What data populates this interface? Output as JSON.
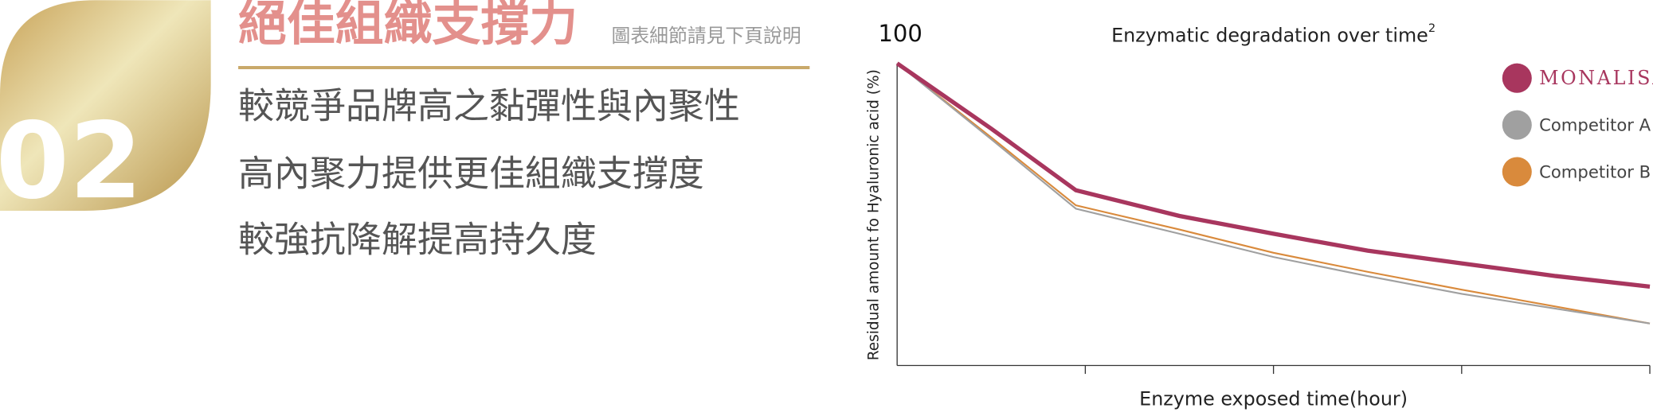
{
  "header": {
    "number": "02",
    "title": "絕佳組織支撐力",
    "note": "圖表細節請見下頁說明"
  },
  "lines": [
    "較競爭品牌高之黏彈性與內聚性",
    "高內聚力提供更佳組織支撐度",
    "較強抗降解提高持久度"
  ],
  "chart_data": {
    "type": "line",
    "title": "Enzymatic degradation over time",
    "title_note": "2",
    "x_label": "Enzyme exposed time(hour)",
    "y_label": "Residual amount fo Hyaluronic acid (%)",
    "x": [
      0,
      0.5,
      0.95,
      1.5,
      2,
      2.5,
      3,
      3.5,
      4
    ],
    "xlim": [
      0,
      4
    ],
    "xticks": [
      1,
      2,
      3,
      4
    ],
    "ylim": [
      0,
      100
    ],
    "yticks": [
      100
    ],
    "series": [
      {
        "name": "MONALISA",
        "color": "#a8365e",
        "values": [
          100,
          78.4,
          58,
          49.5,
          43.6,
          38,
          33.8,
          29.6,
          26.1
        ]
      },
      {
        "name": "Competitor A",
        "color": "#a0a0a0",
        "values": [
          100,
          74.9,
          51.9,
          43.6,
          35.9,
          29.6,
          23.7,
          18.8,
          13.9
        ]
      },
      {
        "name": "Competitor B",
        "color": "#d98a3c",
        "values": [
          100,
          75.5,
          53,
          45,
          37.3,
          31,
          25.1,
          19.5,
          13.9
        ]
      }
    ]
  }
}
